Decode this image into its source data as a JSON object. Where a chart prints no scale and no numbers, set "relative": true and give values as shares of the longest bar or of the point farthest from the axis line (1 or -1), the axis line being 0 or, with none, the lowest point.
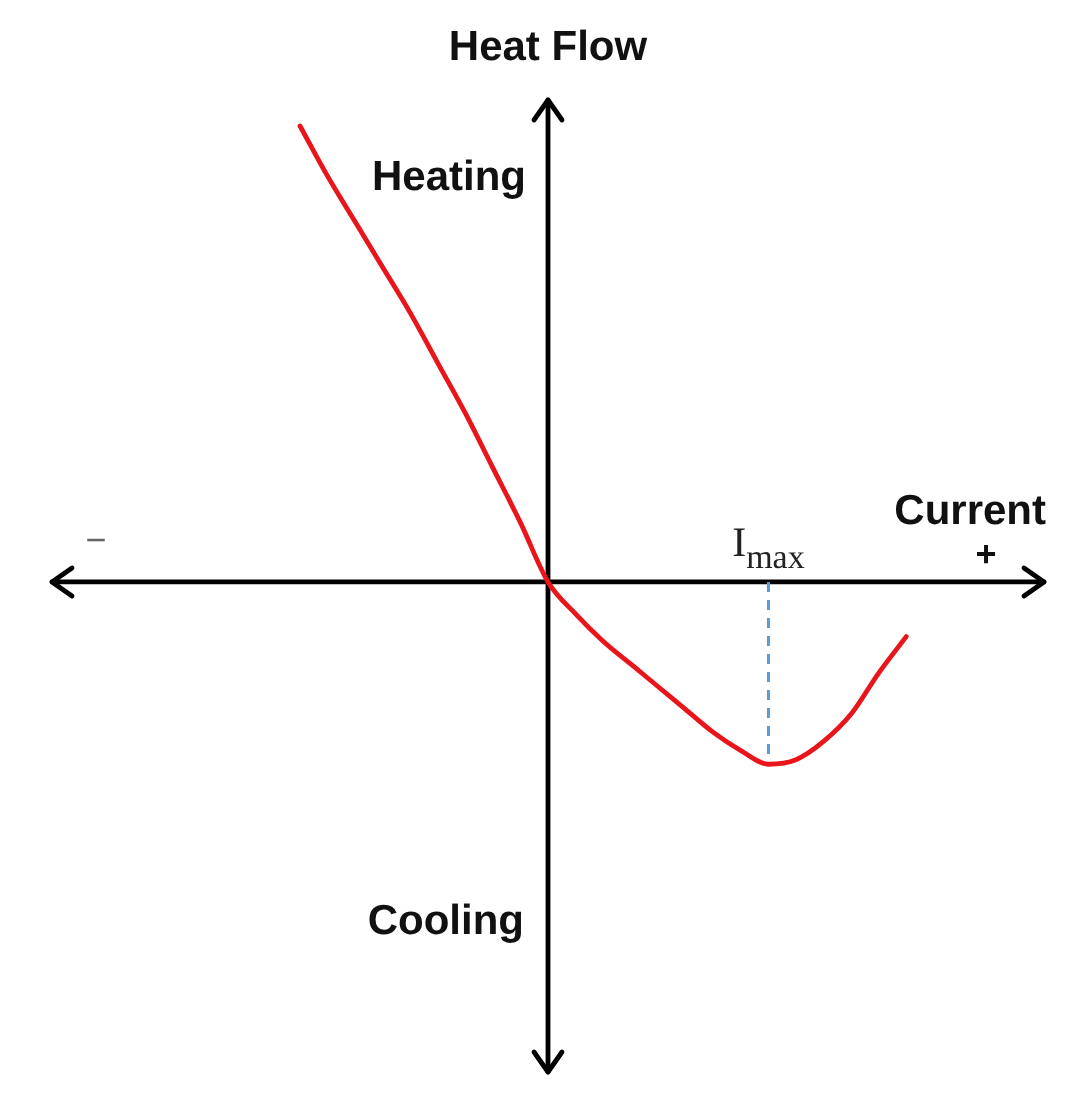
{
  "chart_data": {
    "type": "line",
    "xlabel": "Current",
    "ylabel": "Heat Flow",
    "annotations": [
      "Heating",
      "Cooling",
      "−",
      "+",
      {
        "text": "I$_{max}$",
        "y": -0.4
      }
    ],
    "relative": true,
    "categories": [
      null,
      null,
      null,
      null,
      null,
      null,
      null,
      null,
      null,
      null,
      null,
      null,
      null,
      null,
      null,
      null,
      null,
      null,
      null,
      null,
      null,
      null,
      null,
      null,
      null,
      null,
      null,
      null,
      null,
      null,
      null,
      null,
      null,
      null,
      null,
      null,
      null
    ],
    "values": [
      null,
      null,
      null,
      null,
      null,
      null,
      null,
      null,
      null,
      1,
      0.89,
      0.79,
      0.69,
      0.59,
      0.48,
      0.37,
      0.25,
      0.13,
      0,
      -0.07,
      -0.13,
      -0.18,
      -0.23,
      -0.28,
      -0.33,
      -0.37,
      -0.4,
      -0.39,
      -0.35,
      -0.29,
      -0.2,
      -0.12,
      null,
      null,
      null,
      null,
      null
    ],
    "color": "#e8151b",
    "marker": "none",
    "legend": false,
    "grid": false
  }
}
